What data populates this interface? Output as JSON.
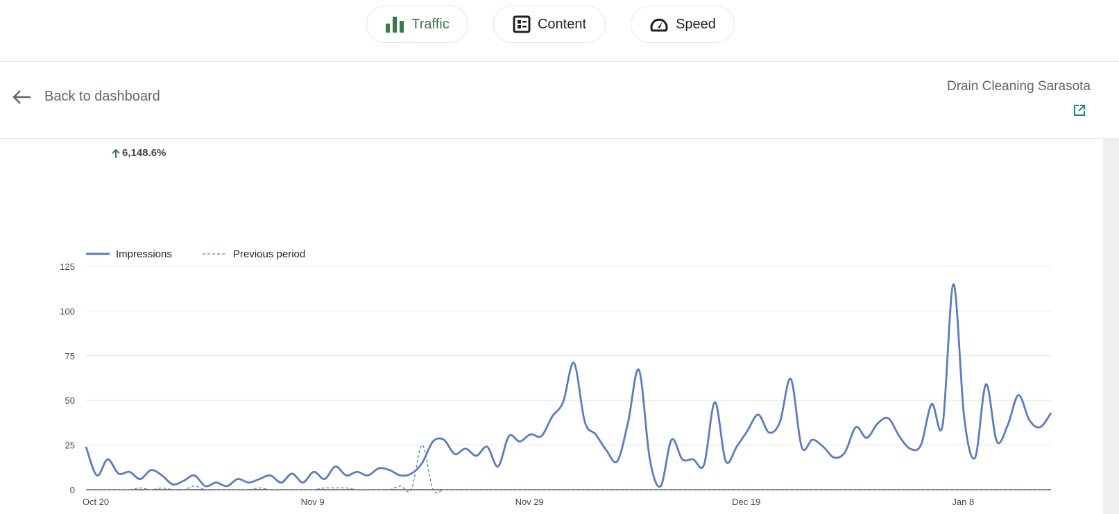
{
  "nav": {
    "tabs": [
      {
        "label": "Traffic",
        "icon": "bar-chart-icon",
        "active": true
      },
      {
        "label": "Content",
        "icon": "content-list-icon",
        "active": false
      },
      {
        "label": "Speed",
        "icon": "speedometer-icon",
        "active": false
      }
    ]
  },
  "header": {
    "back_label": "Back to dashboard",
    "site_name": "Drain Cleaning Sarasota",
    "external_link_icon": "open-in-new-icon"
  },
  "summary": {
    "change": "6,148.6%",
    "direction": "up",
    "color": "#3b7a4b"
  },
  "colors": {
    "accent_green": "#3b7a4b",
    "series": "#5b7dbd",
    "link_teal": "#1a8a7a"
  },
  "chart_data": {
    "type": "line",
    "x_start": "Oct 20",
    "x_end": "Jan 17",
    "xtick_labels": [
      "Oct 20",
      "Nov 9",
      "Nov 29",
      "Dec 19",
      "Jan 8"
    ],
    "yticks": [
      0,
      25,
      50,
      75,
      100,
      125
    ],
    "ylim": [
      0,
      125
    ],
    "grid": true,
    "legend": "top-left",
    "series": [
      {
        "name": "Impressions",
        "style": "solid",
        "values": [
          24,
          8,
          17,
          9,
          10,
          6,
          11,
          8,
          3,
          5,
          8,
          2,
          4,
          2,
          6,
          4,
          6,
          8,
          4,
          9,
          4,
          10,
          6,
          13,
          8,
          10,
          8,
          12,
          11,
          8,
          9,
          15,
          27,
          28,
          20,
          23,
          19,
          24,
          13,
          30,
          27,
          31,
          30,
          41,
          49,
          71,
          38,
          31,
          22,
          16,
          38,
          67,
          17,
          2,
          28,
          17,
          17,
          14,
          49,
          16,
          24,
          33,
          42,
          32,
          38,
          62,
          24,
          28,
          24,
          18,
          21,
          35,
          29,
          37,
          40,
          30,
          23,
          25,
          48,
          36,
          115,
          40,
          18,
          59,
          27,
          36,
          53,
          39,
          35,
          43
        ]
      },
      {
        "name": "Previous period",
        "style": "dashed",
        "values": [
          0,
          0,
          0,
          0,
          0,
          1,
          0,
          1,
          0,
          0,
          2,
          0,
          0,
          0,
          0,
          0,
          1,
          0,
          0,
          0,
          0,
          0,
          1,
          1,
          1,
          0,
          0,
          0,
          0,
          2,
          0,
          25,
          0,
          0,
          0,
          0,
          0,
          0,
          0,
          0,
          0,
          0,
          0,
          0,
          0,
          0,
          0,
          0,
          0,
          0,
          0,
          0,
          0,
          0,
          0,
          0,
          0,
          0,
          0,
          0,
          0,
          0,
          0,
          0,
          0,
          0,
          0,
          0,
          0,
          0,
          0,
          0,
          0,
          0,
          0,
          0,
          0,
          0,
          0,
          0,
          0,
          0,
          0,
          0,
          0,
          0,
          0,
          0,
          0,
          0
        ]
      }
    ]
  }
}
